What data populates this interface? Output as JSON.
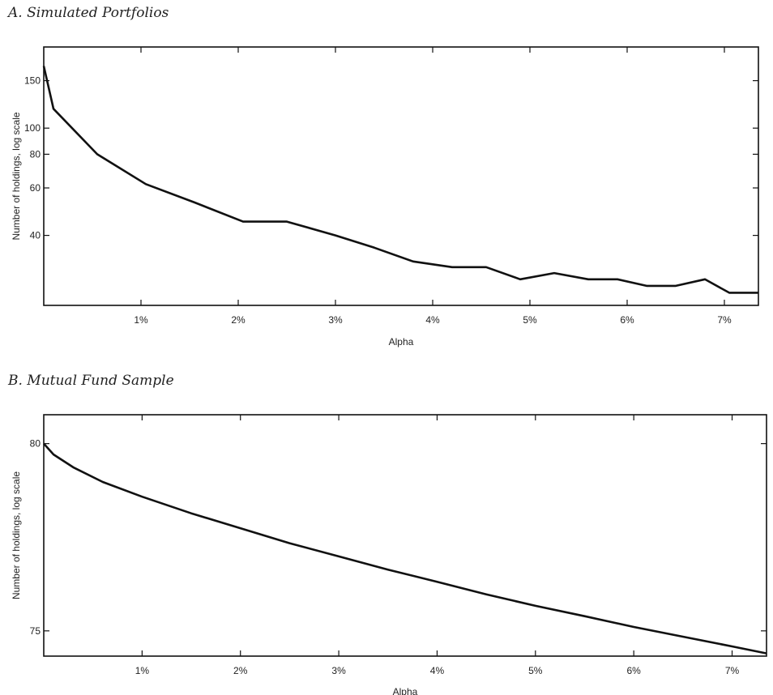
{
  "chart_data": [
    {
      "type": "line",
      "panel_title": "A. Simulated Portfolios",
      "xlabel": "Alpha",
      "ylabel": "Number of holdings, log scale",
      "yscale": "log",
      "grid": false,
      "xlim": [
        0.0,
        7.35
      ],
      "ylim": [
        22,
        200
      ],
      "x_ticks": [
        1,
        2,
        3,
        4,
        5,
        6,
        7
      ],
      "x_tick_labels": [
        "1%",
        "2%",
        "3%",
        "4%",
        "5%",
        "6%",
        "7%"
      ],
      "y_ticks": [
        40,
        60,
        80,
        100,
        150
      ],
      "y_tick_labels": [
        "40",
        "60",
        "80",
        "100",
        "150"
      ],
      "series": [
        {
          "x": [
            0.0,
            0.1,
            0.55,
            1.05,
            1.55,
            2.05,
            2.5,
            3.0,
            3.4,
            3.8,
            4.2,
            4.55,
            4.9,
            5.25,
            5.6,
            5.9,
            6.2,
            6.5,
            6.8,
            7.05,
            7.35
          ],
          "y": [
            170,
            118,
            80,
            62,
            53,
            45,
            45,
            40,
            36,
            32,
            30.5,
            30.5,
            27.5,
            29,
            27.5,
            27.5,
            26,
            26,
            27.5,
            24.5,
            24.5
          ]
        }
      ]
    },
    {
      "type": "line",
      "panel_title": "B. Mutual Fund Sample",
      "xlabel": "Alpha",
      "ylabel": "Number of holdings, log scale",
      "yscale": "log",
      "grid": false,
      "xlim": [
        0.0,
        7.35
      ],
      "ylim": [
        74.35,
        80.8
      ],
      "x_ticks": [
        1,
        2,
        3,
        4,
        5,
        6,
        7
      ],
      "x_tick_labels": [
        "1%",
        "2%",
        "3%",
        "4%",
        "5%",
        "6%",
        "7%"
      ],
      "y_ticks": [
        75,
        80
      ],
      "y_tick_labels": [
        "75",
        "80"
      ],
      "series": [
        {
          "x": [
            0.0,
            0.1,
            0.3,
            0.6,
            1.0,
            1.5,
            2.0,
            2.5,
            3.0,
            3.5,
            4.0,
            4.5,
            5.0,
            5.5,
            6.0,
            6.5,
            7.0,
            7.35
          ],
          "y": [
            80.0,
            79.7,
            79.35,
            78.95,
            78.55,
            78.1,
            77.7,
            77.3,
            76.95,
            76.6,
            76.28,
            75.95,
            75.65,
            75.38,
            75.1,
            74.85,
            74.6,
            74.42
          ]
        }
      ]
    }
  ]
}
